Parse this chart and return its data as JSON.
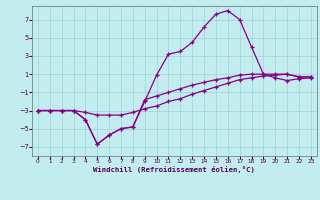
{
  "title": "",
  "xlabel": "Windchill (Refroidissement éolien,°C)",
  "ylabel": "",
  "xlim": [
    -0.5,
    23.5
  ],
  "ylim": [
    -8,
    8.5
  ],
  "xticks": [
    0,
    1,
    2,
    3,
    4,
    5,
    6,
    7,
    8,
    9,
    10,
    11,
    12,
    13,
    14,
    15,
    16,
    17,
    18,
    19,
    20,
    21,
    22,
    23
  ],
  "yticks": [
    -7,
    -5,
    -3,
    -1,
    1,
    3,
    5,
    7
  ],
  "bg_color": "#c2ecee",
  "grid_color": "#9dd4d8",
  "line_color": "#880088",
  "line1_x": [
    0,
    1,
    2,
    3,
    4,
    5,
    6,
    7,
    8,
    9,
    10,
    11,
    12,
    13,
    14,
    15,
    16,
    17,
    18,
    19,
    20,
    21,
    22,
    23
  ],
  "line1_y": [
    -3,
    -3,
    -3,
    -3,
    -3.2,
    -3.5,
    -3.5,
    -3.5,
    -3.2,
    -2.8,
    -2.5,
    -2.0,
    -1.7,
    -1.2,
    -0.8,
    -0.4,
    0.0,
    0.4,
    0.6,
    0.8,
    0.9,
    1.0,
    0.7,
    0.7
  ],
  "line2_x": [
    0,
    1,
    2,
    3,
    4,
    5,
    6,
    7,
    8,
    9,
    10,
    11,
    12,
    13,
    14,
    15,
    16,
    17,
    18,
    19,
    20,
    21,
    22,
    23
  ],
  "line2_y": [
    -3,
    -3,
    -3,
    -3,
    -4,
    -6.7,
    -5.7,
    -5.0,
    -4.8,
    -2.0,
    0.9,
    3.2,
    3.5,
    4.5,
    6.2,
    7.6,
    8.0,
    7.0,
    4.0,
    1.0,
    0.6,
    0.3,
    0.5,
    0.6
  ],
  "line3_x": [
    0,
    1,
    2,
    3,
    4,
    5,
    6,
    7,
    8,
    9,
    10,
    11,
    12,
    13,
    14,
    15,
    16,
    17,
    18,
    19,
    20,
    21,
    22,
    23
  ],
  "line3_y": [
    -3,
    -3,
    -3,
    -3,
    -4,
    -6.7,
    -5.7,
    -5.0,
    -4.8,
    -1.8,
    -1.4,
    -1.0,
    -0.6,
    -0.2,
    0.1,
    0.4,
    0.6,
    0.9,
    1.0,
    1.0,
    1.0,
    1.0,
    0.7,
    0.7
  ]
}
